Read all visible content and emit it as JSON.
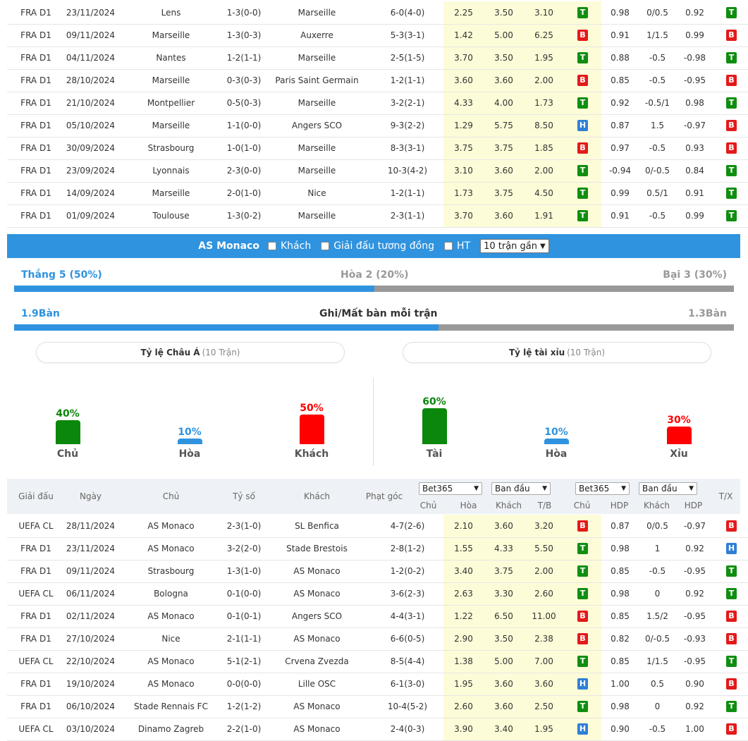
{
  "top_rows": [
    {
      "league": "FRA D1",
      "date": "23/11/2024",
      "home": "Lens",
      "home_hl": false,
      "score": "1-3(0-0)",
      "away": "Marseille",
      "away_hl": true,
      "corners": "6-0(4-0)",
      "o1": "2.25",
      "o2": "3.50",
      "o3": "3.10",
      "r1": "T",
      "a1": "0.98",
      "hdp": "0/0.5",
      "a2": "0.92",
      "r2": "T",
      "r3": "T"
    },
    {
      "league": "FRA D1",
      "date": "09/11/2024",
      "home": "Marseille",
      "home_hl": true,
      "score": "1-3(0-3)",
      "away": "Auxerre",
      "away_hl": false,
      "corners": "5-3(3-1)",
      "o1": "1.42",
      "o2": "5.00",
      "o3": "6.25",
      "r1": "B",
      "a1": "0.91",
      "hdp": "1/1.5",
      "a2": "0.99",
      "r2": "B",
      "r3": "T"
    },
    {
      "league": "FRA D1",
      "date": "04/11/2024",
      "home": "Nantes",
      "home_hl": false,
      "score": "1-2(1-1)",
      "away": "Marseille",
      "away_hl": true,
      "corners": "2-5(1-5)",
      "o1": "3.70",
      "o2": "3.50",
      "o3": "1.95",
      "r1": "T",
      "a1": "0.88",
      "hdp": "-0.5",
      "a2": "-0.98",
      "r2": "T",
      "r3": "T"
    },
    {
      "league": "FRA D1",
      "date": "28/10/2024",
      "home": "Marseille",
      "home_hl": true,
      "score": "0-3(0-3)",
      "away": "Paris Saint Germain",
      "away_hl": false,
      "corners": "1-2(1-1)",
      "o1": "3.60",
      "o2": "3.60",
      "o3": "2.00",
      "r1": "B",
      "a1": "0.85",
      "hdp": "-0.5",
      "a2": "-0.95",
      "r2": "B",
      "r3": "H"
    },
    {
      "league": "FRA D1",
      "date": "21/10/2024",
      "home": "Montpellier",
      "home_hl": false,
      "score": "0-5(0-3)",
      "away": "Marseille",
      "away_hl": true,
      "corners": "3-2(2-1)",
      "o1": "4.33",
      "o2": "4.00",
      "o3": "1.73",
      "r1": "T",
      "a1": "0.92",
      "hdp": "-0.5/1",
      "a2": "0.98",
      "r2": "T",
      "r3": "T"
    },
    {
      "league": "FRA D1",
      "date": "05/10/2024",
      "home": "Marseille",
      "home_hl": true,
      "score": "1-1(0-0)",
      "away": "Angers SCO",
      "away_hl": false,
      "corners": "9-3(2-2)",
      "o1": "1.29",
      "o2": "5.75",
      "o3": "8.50",
      "r1": "H",
      "a1": "0.87",
      "hdp": "1.5",
      "a2": "-0.97",
      "r2": "B",
      "r3": "X"
    },
    {
      "league": "FRA D1",
      "date": "30/09/2024",
      "home": "Strasbourg",
      "home_hl": false,
      "score": "1-0(1-0)",
      "away": "Marseille",
      "away_hl": true,
      "corners": "8-3(3-1)",
      "o1": "3.75",
      "o2": "3.75",
      "o3": "1.85",
      "r1": "B",
      "a1": "0.97",
      "hdp": "-0.5",
      "a2": "0.93",
      "r2": "B",
      "r3": "X"
    },
    {
      "league": "FRA D1",
      "date": "23/09/2024",
      "home": "Lyonnais",
      "home_hl": false,
      "score": "2-3(0-0)",
      "away": "Marseille",
      "away_hl": true,
      "corners": "10-3(4-2)",
      "o1": "3.10",
      "o2": "3.60",
      "o3": "2.00",
      "r1": "T",
      "a1": "-0.94",
      "hdp": "0/-0.5",
      "a2": "0.84",
      "r2": "T",
      "r3": "T"
    },
    {
      "league": "FRA D1",
      "date": "14/09/2024",
      "home": "Marseille",
      "home_hl": true,
      "score": "2-0(1-0)",
      "away": "Nice",
      "away_hl": false,
      "corners": "1-2(1-1)",
      "o1": "1.73",
      "o2": "3.75",
      "o3": "4.50",
      "r1": "T",
      "a1": "0.99",
      "hdp": "0.5/1",
      "a2": "0.91",
      "r2": "T",
      "r3": "X"
    },
    {
      "league": "FRA D1",
      "date": "01/09/2024",
      "home": "Toulouse",
      "home_hl": false,
      "score": "1-3(0-2)",
      "away": "Marseille",
      "away_hl": true,
      "corners": "2-3(1-1)",
      "o1": "3.70",
      "o2": "3.60",
      "o3": "1.91",
      "r1": "T",
      "a1": "0.91",
      "hdp": "-0.5",
      "a2": "0.99",
      "r2": "T",
      "r3": "T"
    }
  ],
  "filter_bar": {
    "team": "AS Monaco",
    "opt_away": "Khách",
    "opt_same_league": "Giải đấu tương đồng",
    "opt_ht": "HT",
    "select_value": "10 trận gần"
  },
  "summary": {
    "win": "Thắng 5 (50%)",
    "draw": "Hòa 2 (20%)",
    "loss": "Bại 3 (30%)",
    "win_share": 0.5,
    "goals_for": "1.9Bàn",
    "goals_title": "Ghi/Mất bàn mỗi trận",
    "goals_against": "1.3Bàn",
    "goals_share": 0.59
  },
  "asian": {
    "title": "Tỷ lệ Châu Á",
    "sub": "(10 Trận)",
    "bars": [
      {
        "pct": "40%",
        "name": "Chủ",
        "value": 40,
        "color": "#0b870b"
      },
      {
        "pct": "10%",
        "name": "Hòa",
        "value": 10,
        "color": "#2f93df"
      },
      {
        "pct": "50%",
        "name": "Khách",
        "value": 50,
        "color": "#ff0000"
      }
    ]
  },
  "overunder": {
    "title": "Tỷ lệ tài xỉu",
    "sub": "(10 Trận)",
    "bars": [
      {
        "pct": "60%",
        "name": "Tài",
        "value": 60,
        "color": "#0b870b"
      },
      {
        "pct": "10%",
        "name": "Hòa",
        "value": 10,
        "color": "#2f93df"
      },
      {
        "pct": "30%",
        "name": "Xỉu",
        "value": 30,
        "color": "#ff0000"
      }
    ]
  },
  "header": {
    "league": "Giải đấu",
    "date": "Ngày",
    "home": "Chủ",
    "score": "Tỷ số",
    "away": "Khách",
    "corners": "Phạt góc",
    "sel1": "Bet365",
    "sel2": "Ban đầu",
    "sel3": "Bet365",
    "sel4": "Ban đầu",
    "s1": "Chủ",
    "s2": "Hòa",
    "s3": "Khách",
    "s4": "T/B",
    "s5": "Chủ",
    "s6": "HDP",
    "s7": "Khách",
    "s8": "HDP",
    "tx": "T/X"
  },
  "bottom_rows": [
    {
      "league": "UEFA CL",
      "date": "28/11/2024",
      "home": "AS Monaco",
      "home_hl": true,
      "score": "2-3(1-0)",
      "away": "SL Benfica",
      "away_hl": false,
      "corners": "4-7(2-6)",
      "o1": "2.10",
      "o2": "3.60",
      "o3": "3.20",
      "r1": "B",
      "a1": "0.87",
      "hdp": "0/0.5",
      "a2": "-0.97",
      "r2": "B",
      "r3": "T"
    },
    {
      "league": "FRA D1",
      "date": "23/11/2024",
      "home": "AS Monaco",
      "home_hl": true,
      "score": "3-2(2-0)",
      "away": "Stade Brestois",
      "away_hl": false,
      "corners": "2-8(1-2)",
      "o1": "1.55",
      "o2": "4.33",
      "o3": "5.50",
      "r1": "T",
      "a1": "0.98",
      "hdp": "1",
      "a2": "0.92",
      "r2": "H",
      "r3": "T"
    },
    {
      "league": "FRA D1",
      "date": "09/11/2024",
      "home": "Strasbourg",
      "home_hl": false,
      "score": "1-3(1-0)",
      "away": "AS Monaco",
      "away_hl": true,
      "corners": "1-2(0-2)",
      "o1": "3.40",
      "o2": "3.75",
      "o3": "2.00",
      "r1": "T",
      "a1": "0.85",
      "hdp": "-0.5",
      "a2": "-0.95",
      "r2": "T",
      "r3": "T"
    },
    {
      "league": "UEFA CL",
      "date": "06/11/2024",
      "home": "Bologna",
      "home_hl": false,
      "score": "0-1(0-0)",
      "away": "AS Monaco",
      "away_hl": true,
      "corners": "3-6(2-3)",
      "o1": "2.63",
      "o2": "3.30",
      "o3": "2.60",
      "r1": "T",
      "a1": "0.98",
      "hdp": "0",
      "a2": "0.92",
      "r2": "T",
      "r3": "X"
    },
    {
      "league": "FRA D1",
      "date": "02/11/2024",
      "home": "AS Monaco",
      "home_hl": true,
      "score": "0-1(0-1)",
      "away": "Angers SCO",
      "away_hl": false,
      "corners": "4-4(3-1)",
      "o1": "1.22",
      "o2": "6.50",
      "o3": "11.00",
      "r1": "B",
      "a1": "0.85",
      "hdp": "1.5/2",
      "a2": "-0.95",
      "r2": "B",
      "r3": "X"
    },
    {
      "league": "FRA D1",
      "date": "27/10/2024",
      "home": "Nice",
      "home_hl": false,
      "score": "2-1(1-1)",
      "away": "AS Monaco",
      "away_hl": true,
      "corners": "6-6(0-5)",
      "o1": "2.90",
      "o2": "3.50",
      "o3": "2.38",
      "r1": "B",
      "a1": "0.82",
      "hdp": "0/-0.5",
      "a2": "-0.93",
      "r2": "B",
      "r3": "T"
    },
    {
      "league": "UEFA CL",
      "date": "22/10/2024",
      "home": "AS Monaco",
      "home_hl": true,
      "score": "5-1(2-1)",
      "away": "Crvena Zvezda",
      "away_hl": false,
      "corners": "8-5(4-4)",
      "o1": "1.38",
      "o2": "5.00",
      "o3": "7.00",
      "r1": "T",
      "a1": "0.85",
      "hdp": "1/1.5",
      "a2": "-0.95",
      "r2": "T",
      "r3": "T"
    },
    {
      "league": "FRA D1",
      "date": "19/10/2024",
      "home": "AS Monaco",
      "home_hl": true,
      "score": "0-0(0-0)",
      "away": "Lille OSC",
      "away_hl": false,
      "corners": "6-1(3-0)",
      "o1": "1.95",
      "o2": "3.60",
      "o3": "3.60",
      "r1": "H",
      "a1": "1.00",
      "hdp": "0.5",
      "a2": "0.90",
      "r2": "B",
      "r3": "X"
    },
    {
      "league": "FRA D1",
      "date": "06/10/2024",
      "home": "Stade Rennais FC",
      "home_hl": false,
      "score": "1-2(1-2)",
      "away": "AS Monaco",
      "away_hl": true,
      "corners": "10-4(5-2)",
      "o1": "2.60",
      "o2": "3.60",
      "o3": "2.50",
      "r1": "T",
      "a1": "0.98",
      "hdp": "0",
      "a2": "0.92",
      "r2": "T",
      "r3": "H"
    },
    {
      "league": "UEFA CL",
      "date": "03/10/2024",
      "home": "Dinamo Zagreb",
      "home_hl": false,
      "score": "2-2(1-0)",
      "away": "AS Monaco",
      "away_hl": true,
      "corners": "2-4(0-3)",
      "o1": "3.90",
      "o2": "3.40",
      "o3": "1.95",
      "r1": "H",
      "a1": "0.90",
      "hdp": "-0.5",
      "a2": "1.00",
      "r2": "B",
      "r3": "T"
    }
  ]
}
